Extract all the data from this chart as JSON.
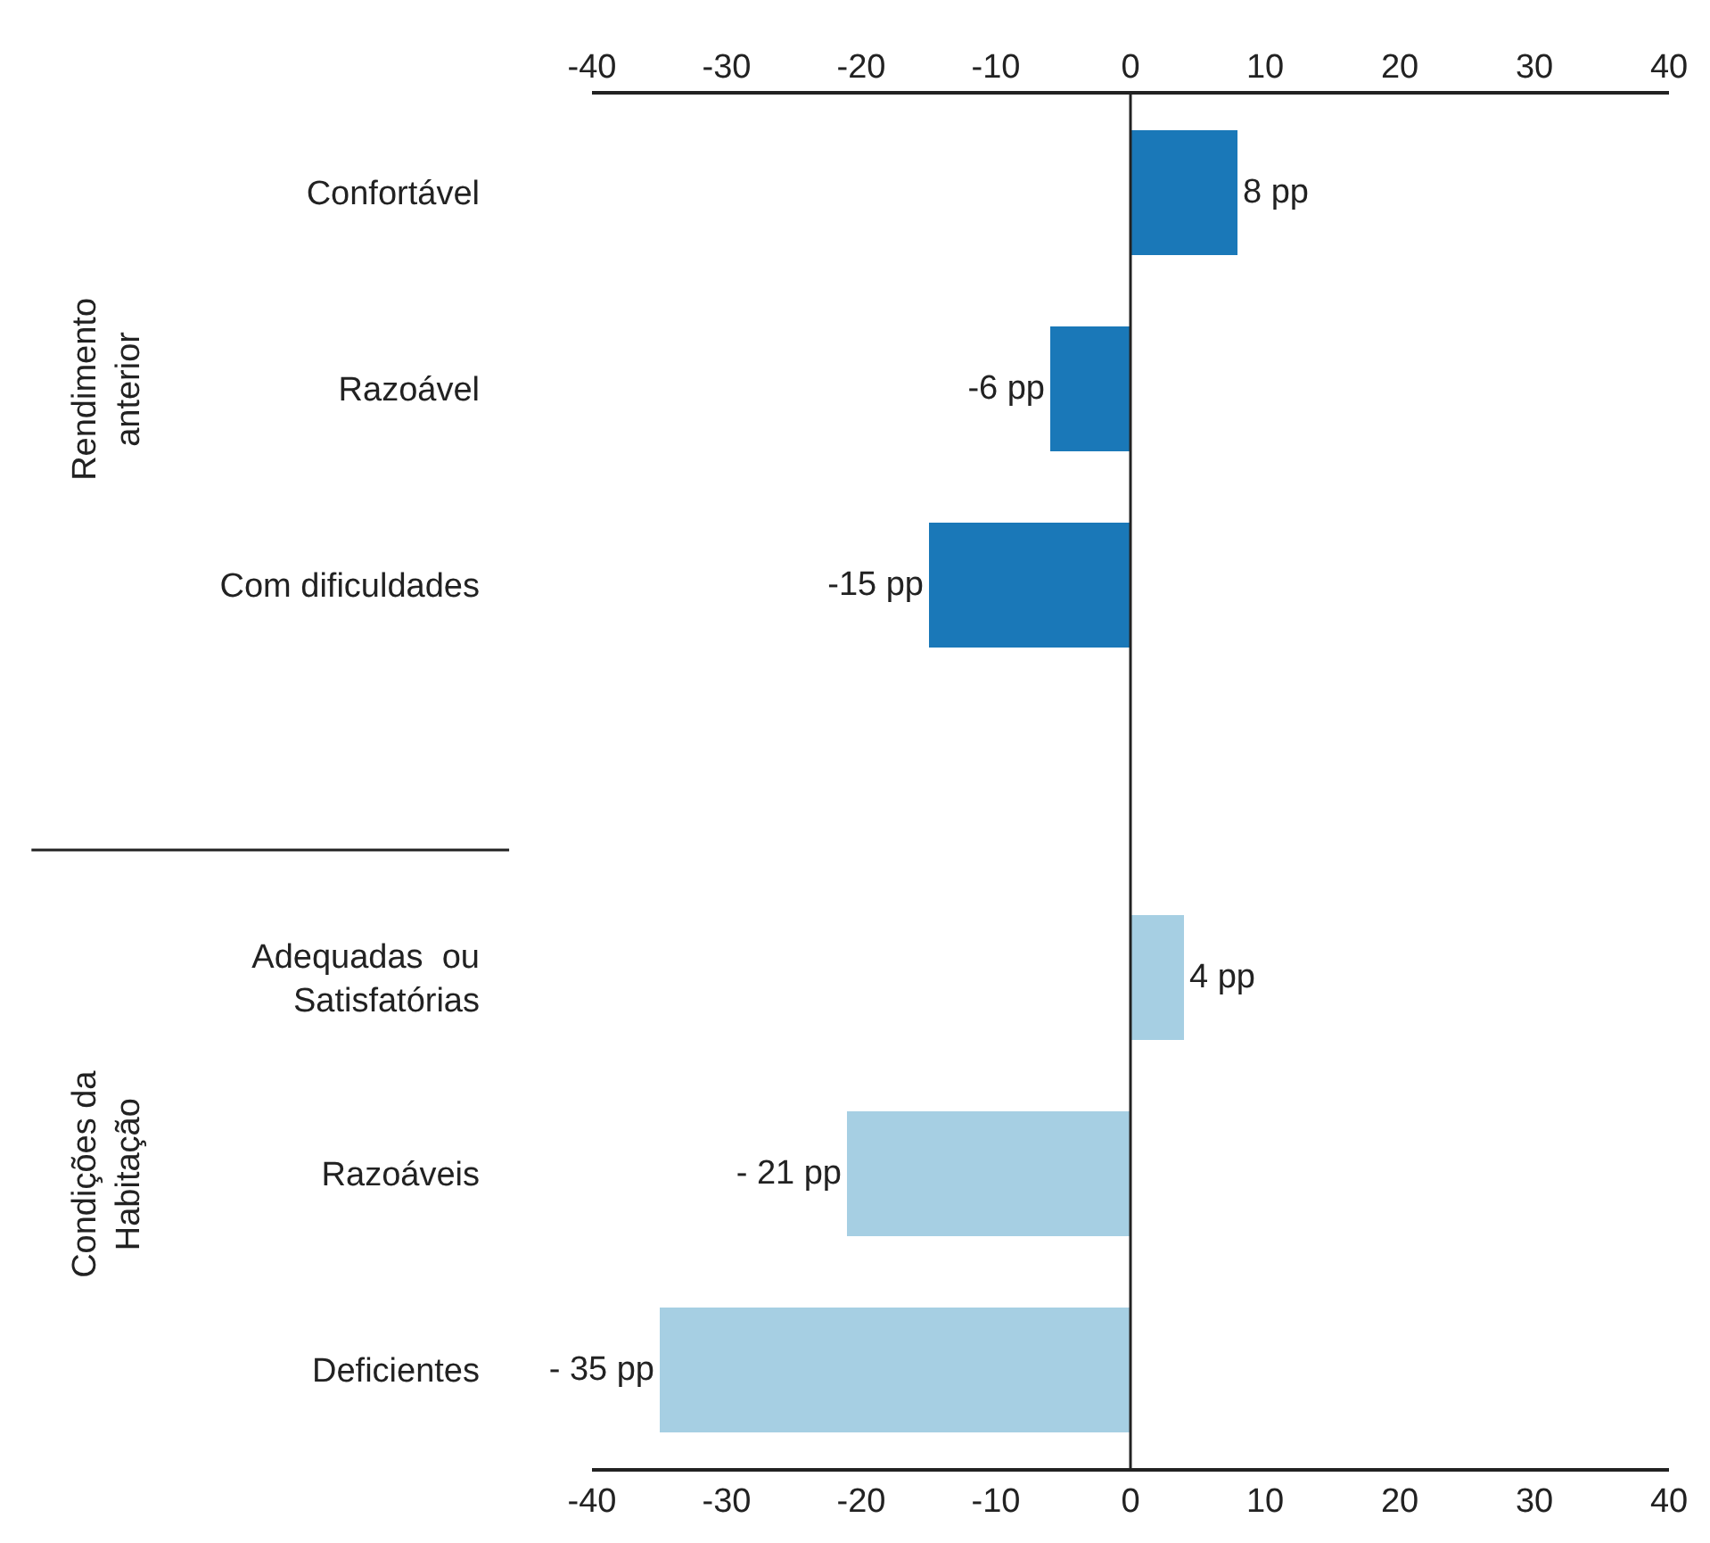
{
  "chart_data": {
    "type": "bar",
    "orientation": "horizontal",
    "categories": [
      "Confortável",
      "Razoável",
      "Com dificuldades",
      null,
      "Adequadas  ou Satisfatórias",
      "Razoáveis",
      "Deficientes"
    ],
    "values": [
      8,
      -6,
      -15,
      null,
      4,
      -21,
      -35
    ],
    "colors": [
      "#1a78b8",
      "#1a78b8",
      "#1a78b8",
      null,
      "#a6cfe3",
      "#a6cfe3",
      "#a6cfe3"
    ],
    "value_labels": [
      "8 pp",
      "-6 pp",
      "-15 pp",
      null,
      "4 pp",
      "- 21 pp",
      "- 35 pp"
    ],
    "xlim": [
      -40,
      40
    ],
    "xticks": [
      -40,
      -30,
      -20,
      -10,
      0,
      10,
      20,
      30,
      40
    ],
    "x2lim": [
      -40,
      40
    ],
    "x2ticks": [
      -40,
      -30,
      -20,
      -10,
      0,
      10,
      20,
      30,
      40
    ],
    "annotations": [
      "Rendimento anterior",
      "Condições da Habitação"
    ],
    "ref_lines": [
      {
        "axis": "x",
        "value": 0,
        "color": "#222222",
        "line_style": "solid"
      }
    ],
    "grid": false
  }
}
